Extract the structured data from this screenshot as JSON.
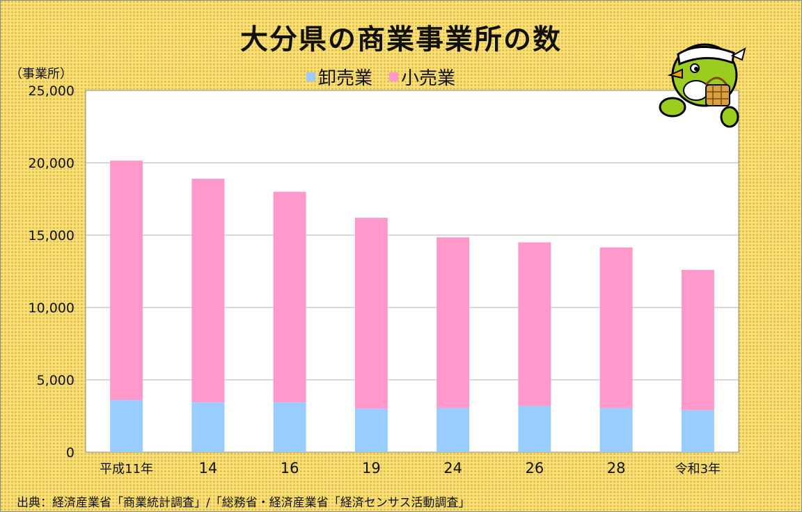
{
  "header": {
    "title": "大分県の商業事業所の数",
    "unit_label": "（事業所）"
  },
  "legend": [
    {
      "label": "卸売業",
      "color": "#99ccff"
    },
    {
      "label": "小売業",
      "color": "#ff99cc"
    }
  ],
  "footer": {
    "source": "出典：経済産業省「商業統計調査」/「総務省・経済産業省「経済センサス活動調査」"
  },
  "mascot": {
    "icon": "green-bird-mascot-icon"
  },
  "chart_data": {
    "type": "bar",
    "stacked": true,
    "categories": [
      "平成11年",
      "14",
      "16",
      "19",
      "24",
      "26",
      "28",
      "令和3年"
    ],
    "series": [
      {
        "name": "卸売業",
        "color": "#99ccff",
        "values": [
          3600,
          3450,
          3450,
          3000,
          3050,
          3200,
          3050,
          2900
        ]
      },
      {
        "name": "小売業",
        "color": "#ff99cc",
        "values": [
          16550,
          15450,
          14550,
          13200,
          11800,
          11300,
          11100,
          9700
        ]
      }
    ],
    "ylim": [
      0,
      25000
    ],
    "yticks": [
      0,
      5000,
      10000,
      15000,
      20000,
      25000
    ],
    "ytick_labels": [
      "0",
      "5,000",
      "10,000",
      "15,000",
      "20,000",
      "25,000"
    ],
    "grid": true,
    "legend_position": "top"
  }
}
